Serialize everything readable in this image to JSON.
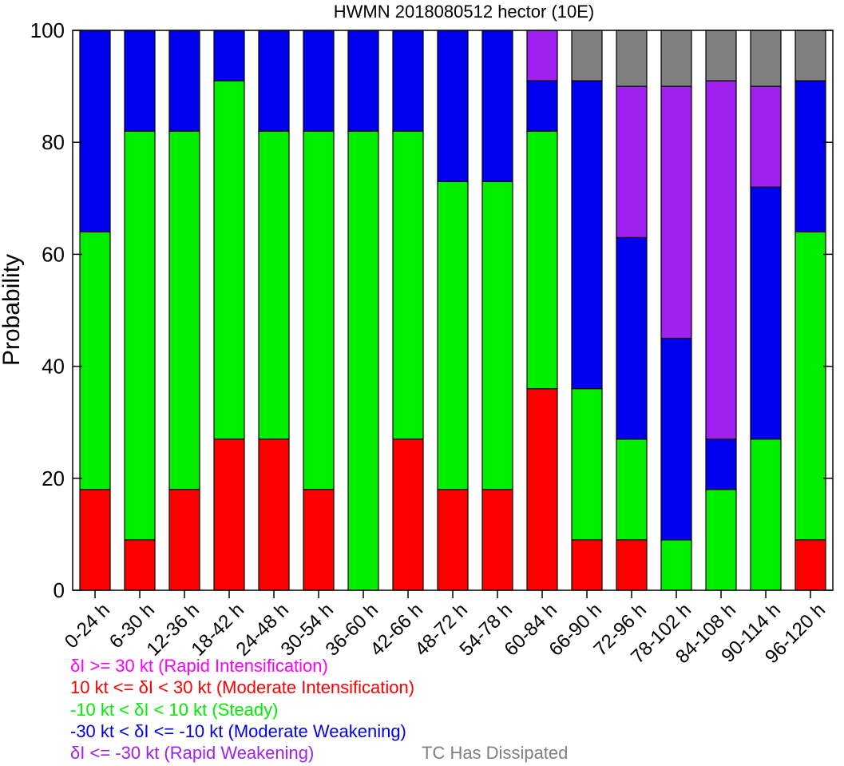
{
  "chart_data": {
    "type": "bar",
    "stacked": true,
    "title": "HWMN 2018080512 hector (10E)",
    "xlabel": "",
    "ylabel": "Probability",
    "ylim": [
      0,
      100
    ],
    "yticks": [
      "0",
      "20",
      "40",
      "60",
      "80",
      "100"
    ],
    "grid": false,
    "categories": [
      "0-24 h",
      "6-30 h",
      "12-36 h",
      "18-42 h",
      "24-48 h",
      "30-54 h",
      "36-60 h",
      "42-66 h",
      "48-72 h",
      "54-78 h",
      "60-84 h",
      "66-90 h",
      "72-96 h",
      "78-102 h",
      "84-108 h",
      "90-114 h",
      "96-120 h"
    ],
    "series": [
      {
        "key": "ri",
        "color": "#ff00ff",
        "values": [
          0,
          0,
          0,
          0,
          0,
          0,
          0,
          0,
          0,
          0,
          0,
          0,
          0,
          0,
          0,
          0,
          0
        ]
      },
      {
        "key": "mi",
        "color": "#ff0000",
        "values": [
          18,
          9,
          18,
          27,
          27,
          18,
          0,
          27,
          18,
          18,
          36,
          9,
          9,
          0,
          0,
          0,
          9
        ]
      },
      {
        "key": "st",
        "color": "#00ee00",
        "values": [
          46,
          73,
          64,
          64,
          55,
          64,
          82,
          55,
          55,
          55,
          46,
          27,
          18,
          9,
          18,
          27,
          55
        ]
      },
      {
        "key": "mw",
        "color": "#0000ee",
        "values": [
          36,
          18,
          18,
          9,
          18,
          18,
          18,
          18,
          27,
          27,
          9,
          55,
          36,
          36,
          9,
          45,
          27
        ]
      },
      {
        "key": "rw",
        "color": "#a020f0",
        "values": [
          0,
          0,
          0,
          0,
          0,
          0,
          0,
          0,
          0,
          0,
          9,
          0,
          27,
          45,
          64,
          18,
          0
        ]
      },
      {
        "key": "dis",
        "color": "#808080",
        "values": [
          0,
          0,
          0,
          0,
          0,
          0,
          0,
          0,
          0,
          0,
          0,
          9,
          10,
          10,
          9,
          10,
          9
        ]
      }
    ],
    "legend": [
      {
        "text": "δI >= 30 kt (Rapid Intensification)",
        "color": "#ff00ff"
      },
      {
        "text": "10 kt <= δI < 30 kt (Moderate Intensification)",
        "color": "#ff0000"
      },
      {
        "text": "-10 kt < δI < 10 kt (Steady)",
        "color": "#00ee00"
      },
      {
        "text": "-30 kt < δI <= -10 kt (Moderate Weakening)",
        "color": "#0000ee"
      },
      {
        "text": "δI <= -30 kt (Rapid Weakening)",
        "color": "#a020f0"
      },
      {
        "text": "TC Has Dissipated",
        "color": "#808080"
      }
    ],
    "legend_placement": "bottom-left"
  }
}
